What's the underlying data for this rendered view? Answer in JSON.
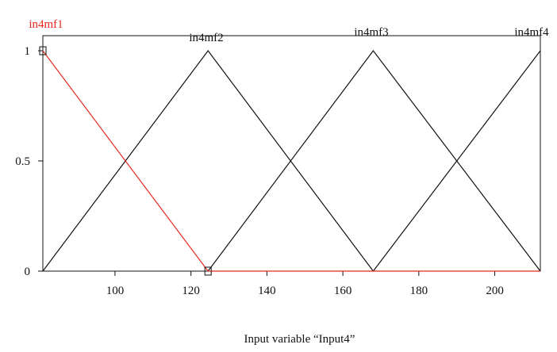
{
  "chart_data": {
    "type": "line",
    "xlabel": "Input variable “Input4”",
    "ylabel": "",
    "xlim": [
      81,
      212
    ],
    "ylim": [
      0,
      1
    ],
    "xticks": [
      "100",
      "120",
      "140",
      "160",
      "180",
      "200"
    ],
    "xtick_values": [
      100,
      120,
      140,
      160,
      180,
      200
    ],
    "yticks": [
      "0",
      "0.5",
      "1"
    ],
    "ytick_values": [
      0,
      0.5,
      1
    ],
    "grid": false,
    "series": [
      {
        "name": "in4mf1",
        "color": "#e8281e",
        "highlighted": true,
        "x": [
          81,
          124.5,
          212
        ],
        "y": [
          1,
          0,
          0
        ]
      },
      {
        "name": "in4mf2",
        "color": "#111111",
        "highlighted": false,
        "x": [
          81,
          124.5,
          168
        ],
        "y": [
          0,
          1,
          0
        ]
      },
      {
        "name": "in4mf3",
        "color": "#111111",
        "highlighted": false,
        "x": [
          124.5,
          168,
          212
        ],
        "y": [
          0,
          1,
          0
        ]
      },
      {
        "name": "in4mf4",
        "color": "#111111",
        "highlighted": false,
        "x": [
          168,
          212
        ],
        "y": [
          0,
          1
        ]
      }
    ],
    "selected_series": "in4mf1",
    "selection_handles": [
      {
        "x": 81,
        "y": 1
      },
      {
        "x": 124.5,
        "y": 0
      }
    ]
  }
}
